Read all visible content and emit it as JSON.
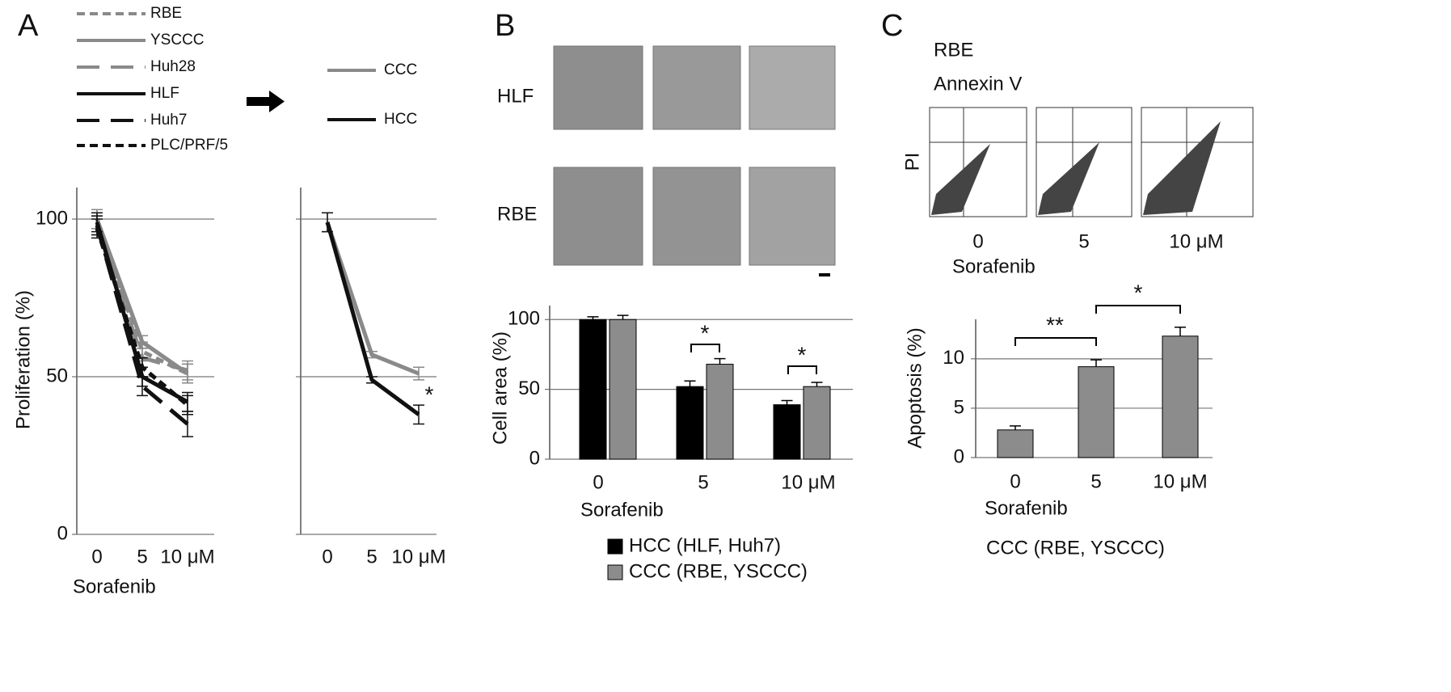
{
  "figure": {
    "panel_labels": [
      "A",
      "B",
      "C"
    ],
    "b_row_labels": [
      "HLF",
      "RBE"
    ],
    "c_cell_line": "RBE",
    "c_x_stain": "Annexin V",
    "c_y_stain": "PI",
    "c_doses": [
      "0",
      "5",
      "10 μM"
    ],
    "c_treatment": "Sorafenib"
  },
  "chart_data": [
    {
      "type": "line",
      "ylabel": "Proliferation (%)",
      "xlabel": "Sorafenib",
      "categories": [
        "0",
        "5",
        "10 μM"
      ],
      "ylim": [
        0,
        110
      ],
      "yticks": [
        0,
        50,
        100
      ],
      "grid": true,
      "show_ytick_labels": true,
      "series": [
        {
          "name": "RBE",
          "color": "#8a8a8a",
          "dash": "dashed",
          "values": [
            100,
            58,
            51
          ],
          "errors": [
            3,
            3,
            3
          ]
        },
        {
          "name": "YSCCC",
          "color": "#8a8a8a",
          "dash": "solid",
          "values": [
            100,
            61,
            51
          ],
          "errors": [
            3,
            2,
            3
          ]
        },
        {
          "name": "Huh28",
          "color": "#8a8a8a",
          "dash": "longdash",
          "values": [
            98,
            56,
            52
          ],
          "errors": [
            3,
            3,
            3
          ]
        },
        {
          "name": "HLF",
          "color": "#111111",
          "dash": "solid",
          "values": [
            99,
            50,
            42
          ],
          "errors": [
            3,
            3,
            3
          ]
        },
        {
          "name": "Huh7",
          "color": "#111111",
          "dash": "longdash",
          "values": [
            98,
            47,
            35
          ],
          "errors": [
            3,
            3,
            4
          ]
        },
        {
          "name": "PLC/PRF/5",
          "color": "#111111",
          "dash": "dashed",
          "values": [
            97,
            53,
            41
          ],
          "errors": [
            3,
            3,
            3
          ]
        }
      ]
    },
    {
      "type": "line",
      "categories": [
        "0",
        "5",
        "10 μM"
      ],
      "ylim": [
        0,
        110
      ],
      "yticks": [
        0,
        50,
        100
      ],
      "grid": true,
      "show_ytick_labels": false,
      "annotations": [
        "*"
      ],
      "series": [
        {
          "name": "CCC",
          "color": "#8a8a8a",
          "dash": "solid",
          "values": [
            99,
            57,
            51
          ],
          "errors": [
            3,
            1,
            2
          ]
        },
        {
          "name": "HCC",
          "color": "#111111",
          "dash": "solid",
          "values": [
            99,
            49,
            38
          ],
          "errors": [
            3,
            1,
            3
          ]
        }
      ]
    },
    {
      "type": "bar",
      "ylabel": "Cell area (%)",
      "xlabel": "Sorafenib",
      "categories": [
        "0",
        "5",
        "10 μM"
      ],
      "ylim": [
        0,
        110
      ],
      "yticks": [
        0,
        50,
        100
      ],
      "grid": true,
      "show_ytick_labels": true,
      "annotations": [
        "*",
        "*"
      ],
      "series": [
        {
          "name": "HCC (HLF, Huh7)",
          "color": "#000000",
          "values": [
            100,
            52,
            39
          ],
          "errors": [
            2,
            4,
            3
          ]
        },
        {
          "name": "CCC (RBE, YSCCC)",
          "color": "#8c8c8c",
          "values": [
            100,
            68,
            52
          ],
          "errors": [
            3,
            4,
            3
          ]
        }
      ]
    },
    {
      "type": "bar",
      "ylabel": "Apoptosis (%)",
      "xlabel": "Sorafenib",
      "caption": "CCC (RBE, YSCCC)",
      "categories": [
        "0",
        "5",
        "10 μM"
      ],
      "ylim": [
        0,
        14
      ],
      "yticks": [
        0,
        5,
        10
      ],
      "grid": true,
      "show_ytick_labels": true,
      "annotations": [
        "**",
        "*"
      ],
      "series": [
        {
          "name": "CCC (RBE, YSCCC)",
          "color": "#8c8c8c",
          "values": [
            2.8,
            9.2,
            12.3
          ],
          "errors": [
            0.4,
            0.7,
            0.9
          ]
        }
      ]
    }
  ]
}
